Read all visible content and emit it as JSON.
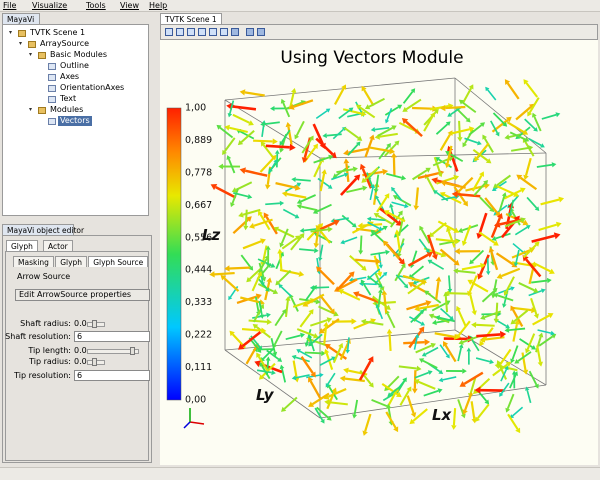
{
  "menu": [
    "File",
    "Visualize",
    "Tools",
    "View",
    "Help"
  ],
  "left_panel": {
    "tab": "MayaVi",
    "tree": {
      "label": "TVTK Scene 1",
      "children": [
        {
          "label": "ArraySource",
          "children": [
            {
              "label": "Basic Modules",
              "children": [
                {
                  "label": "Outline"
                },
                {
                  "label": "Axes"
                },
                {
                  "label": "OrientationAxes"
                },
                {
                  "label": "Text"
                }
              ]
            },
            {
              "label": "Modules",
              "children": [
                {
                  "label": "Vectors",
                  "selected": true
                }
              ]
            }
          ]
        }
      ]
    }
  },
  "editor": {
    "tab": "MayaVi object editor",
    "tabs": [
      "Glyph",
      "Actor"
    ],
    "subtabs": [
      "Masking",
      "Glyph",
      "Glyph Source"
    ],
    "section": "Arrow Source",
    "button": "Edit ArrowSource properties",
    "fields": [
      {
        "label": "Shaft radius:",
        "value": "0.0",
        "widget": "slider"
      },
      {
        "label": "Shaft resolution:",
        "value": "6",
        "widget": "text"
      },
      {
        "label": "Tip length:",
        "value": "0.0",
        "widget": "slider"
      },
      {
        "label": "Tip radius:",
        "value": "0.0",
        "widget": "slider"
      },
      {
        "label": "Tip resolution:",
        "value": "6",
        "widget": "text"
      }
    ]
  },
  "scene": {
    "tab": "TVTK Scene 1",
    "title": "Using Vectors Module",
    "colorbar_labels": [
      "1,00",
      "0,889",
      "0,778",
      "0,667",
      "0,556",
      "0,444",
      "0,333",
      "0,222",
      "0,111",
      "0,00"
    ],
    "axes": {
      "x": "Lx",
      "y": "Ly",
      "z": "Lz"
    }
  }
}
